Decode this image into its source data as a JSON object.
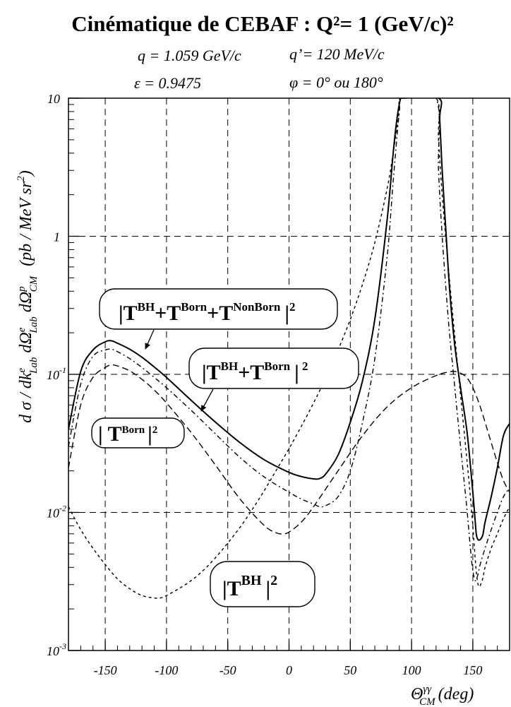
{
  "chart_data": {
    "type": "line",
    "title": "Cinématique de CEBAF : Q²= 1 (GeV/c)²",
    "params": {
      "q": "q = 1.059 GeV/c",
      "qprime": "q’= 120 MeV/c",
      "epsilon": "ε = 0.9475",
      "phi": "φ = 0° ou 180°"
    },
    "xlabel": "Θ^γγ_CM (deg)",
    "ylabel": "d σ / dk^e_Lab dΩ^e_Lab dΩ^p_CM  (pb / MeV sr²)",
    "xlim": [
      -180,
      180
    ],
    "ylim": [
      0.001,
      10
    ],
    "y_scale": "log",
    "grid": true,
    "x_ticks": [
      "-150",
      "-100",
      "-50",
      "0",
      "50",
      "100",
      "150"
    ],
    "y_ticks": [
      {
        "base": "10",
        "exp": "-3"
      },
      {
        "base": "10",
        "exp": "-2"
      },
      {
        "base": "10",
        "exp": "-1"
      },
      {
        "base": "1",
        "exp": ""
      },
      {
        "base": "10",
        "exp": ""
      }
    ],
    "series": [
      {
        "name": "|T^BH+T^Born+T^NonBorn|²",
        "style": "solid",
        "x": [
          -180,
          -170,
          -160,
          -150,
          -145,
          -140,
          -130,
          -120,
          -110,
          -100,
          -80,
          -60,
          -40,
          -20,
          0,
          10,
          20,
          25,
          30,
          40,
          50,
          60,
          70,
          80,
          85,
          88,
          91,
          92,
          122,
          123,
          125,
          128,
          131,
          135,
          140,
          145,
          148,
          150,
          151,
          152,
          153,
          155,
          158,
          160,
          165,
          170,
          175,
          180
        ],
        "y": [
          0.04,
          0.105,
          0.15,
          0.172,
          0.175,
          0.168,
          0.152,
          0.133,
          0.113,
          0.095,
          0.065,
          0.045,
          0.032,
          0.024,
          0.0195,
          0.0182,
          0.0175,
          0.0176,
          0.019,
          0.026,
          0.045,
          0.09,
          0.25,
          1.3,
          4.0,
          7.0,
          10,
          10,
          10,
          7.0,
          3.0,
          1.1,
          0.42,
          0.17,
          0.08,
          0.04,
          0.022,
          0.014,
          0.011,
          0.0085,
          0.0068,
          0.0063,
          0.0068,
          0.0085,
          0.013,
          0.021,
          0.036,
          0.044
        ]
      },
      {
        "name": "|T^BH+T^Born|²",
        "style": "dash-dot",
        "x": [
          -180,
          -170,
          -160,
          -150,
          -145,
          -140,
          -130,
          -120,
          -110,
          -100,
          -80,
          -60,
          -40,
          -20,
          0,
          10,
          20,
          25,
          30,
          40,
          50,
          60,
          70,
          80,
          85,
          90,
          92,
          120,
          122,
          125,
          130,
          135,
          140,
          145,
          148,
          150,
          152,
          154,
          156,
          160,
          165,
          170,
          175,
          180
        ],
        "y": [
          0.03,
          0.085,
          0.135,
          0.15,
          0.152,
          0.146,
          0.13,
          0.112,
          0.095,
          0.08,
          0.055,
          0.037,
          0.025,
          0.018,
          0.014,
          0.0125,
          0.0115,
          0.011,
          0.0112,
          0.013,
          0.02,
          0.045,
          0.13,
          0.7,
          2.5,
          8.0,
          10,
          10,
          3.0,
          1.0,
          0.25,
          0.085,
          0.03,
          0.011,
          0.0055,
          0.0038,
          0.0032,
          0.0035,
          0.0042,
          0.0055,
          0.0075,
          0.01,
          0.013,
          0.015
        ]
      },
      {
        "name": "|T^Born|²",
        "style": "dashed",
        "x": [
          -180,
          -170,
          -160,
          -150,
          -145,
          -140,
          -130,
          -120,
          -110,
          -100,
          -80,
          -60,
          -40,
          -20,
          -10,
          -5,
          0,
          10,
          20,
          40,
          60,
          80,
          100,
          120,
          130,
          135,
          140,
          145,
          150,
          155,
          160,
          165,
          170,
          175,
          180
        ],
        "y": [
          0.021,
          0.06,
          0.095,
          0.112,
          0.117,
          0.115,
          0.106,
          0.092,
          0.077,
          0.062,
          0.038,
          0.022,
          0.0125,
          0.008,
          0.0071,
          0.007,
          0.0072,
          0.0085,
          0.011,
          0.02,
          0.036,
          0.058,
          0.08,
          0.098,
          0.104,
          0.105,
          0.102,
          0.095,
          0.08,
          0.062,
          0.045,
          0.032,
          0.023,
          0.017,
          0.014
        ]
      },
      {
        "name": "|T^BH|²",
        "style": "short-dash",
        "x": [
          -180,
          -170,
          -160,
          -150,
          -140,
          -130,
          -120,
          -110,
          -105,
          -100,
          -90,
          -80,
          -70,
          -60,
          -50,
          -40,
          -30,
          -20,
          -10,
          0,
          10,
          20,
          30,
          40,
          50,
          60,
          70,
          80,
          85,
          90,
          92,
          120,
          122,
          125,
          130,
          135,
          140,
          145,
          148,
          150,
          151,
          153,
          155,
          158,
          160,
          165,
          170,
          175,
          180
        ],
        "y": [
          0.011,
          0.0075,
          0.0055,
          0.0042,
          0.0033,
          0.0028,
          0.0025,
          0.0024,
          0.0024,
          0.0025,
          0.0028,
          0.0032,
          0.0038,
          0.0047,
          0.006,
          0.0078,
          0.0105,
          0.0145,
          0.0205,
          0.029,
          0.042,
          0.062,
          0.094,
          0.15,
          0.25,
          0.45,
          0.9,
          2.2,
          4.0,
          8.0,
          10,
          10,
          5.0,
          2.0,
          0.6,
          0.2,
          0.07,
          0.025,
          0.013,
          0.008,
          0.006,
          0.0036,
          0.0029,
          0.0033,
          0.004,
          0.0055,
          0.007,
          0.009,
          0.011
        ]
      }
    ],
    "labels": {
      "full": {
        "base": "|T",
        "bh": "BH",
        "born": "Born",
        "nonborn": "NonBorn",
        "plus_t": "+T",
        "tail": "|",
        "sq": "2"
      },
      "bh_born": {
        "base": "|T",
        "bh": "BH",
        "born": "Born",
        "plus_t": "+T",
        "tail": "|",
        "sq": " 2"
      },
      "born": {
        "base": "| T",
        "born": "Born",
        "tail": "|",
        "sq": "2"
      },
      "bh": {
        "base": "|T",
        "bh": "BH",
        "tail": "|",
        "sq": "2"
      }
    },
    "colors": {
      "line": "#000000",
      "grid": "#000000",
      "background": "#ffffff"
    }
  }
}
